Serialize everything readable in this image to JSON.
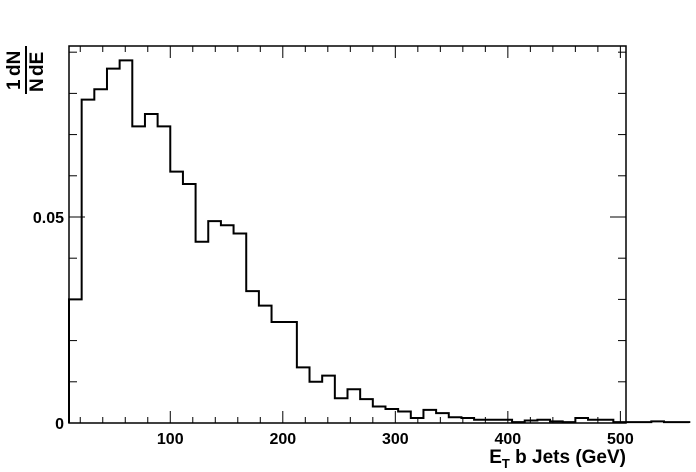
{
  "chart_data": {
    "type": "histogram",
    "xlabel": {
      "main": "E",
      "sub": "T",
      "rest": " b Jets (GeV)"
    },
    "ylabel": {
      "numerator": "1 dN",
      "num_left": "1",
      "num_right": "dN",
      "den_left": "N",
      "den_right": "dE"
    },
    "xlim": [
      10,
      505
    ],
    "ylim": [
      0,
      0.0915
    ],
    "x_ticks": [
      100,
      200,
      300,
      400,
      500
    ],
    "x_tick_labels": [
      "100",
      "200",
      "300",
      "400",
      "500"
    ],
    "y_ticks": [
      0,
      0.05
    ],
    "y_tick_labels": [
      "0",
      "0.05"
    ],
    "bin_width": 11.25,
    "bins_start": 10,
    "values": [
      0.03,
      0.0785,
      0.081,
      0.086,
      0.088,
      0.072,
      0.075,
      0.072,
      0.061,
      0.058,
      0.044,
      0.049,
      0.048,
      0.046,
      0.032,
      0.0285,
      0.0245,
      0.0245,
      0.0135,
      0.01,
      0.0115,
      0.006,
      0.0082,
      0.0058,
      0.004,
      0.0034,
      0.0028,
      0.0012,
      0.0032,
      0.0024,
      0.0014,
      0.0012,
      0.0008,
      0.0008,
      0.0008,
      0.0002,
      0.0006,
      0.0008,
      0.0004,
      0.0002,
      0.0012,
      0.0008,
      0.0008,
      0.0002,
      0.0002,
      0.0002,
      0.0004,
      0.0002,
      0.0002
    ]
  }
}
